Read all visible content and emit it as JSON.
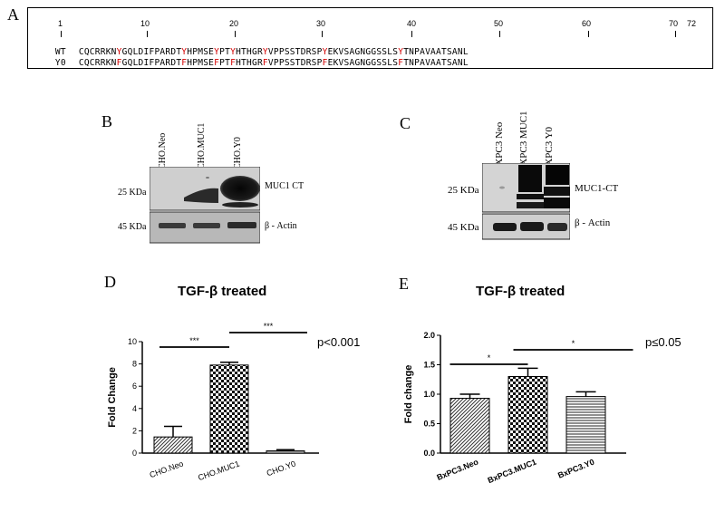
{
  "panels": {
    "A": "A",
    "B": "B",
    "C": "C",
    "D": "D",
    "E": "E"
  },
  "sequence": {
    "positions": [
      "1",
      "10",
      "20",
      "30",
      "40",
      "50",
      "60",
      "70",
      "72"
    ],
    "rows": [
      {
        "label": "WT",
        "segments": [
          {
            "t": "CQCRRKN",
            "red": false
          },
          {
            "t": "Y",
            "red": true
          },
          {
            "t": "GQLDIFPARDT",
            "red": false
          },
          {
            "t": "Y",
            "red": true
          },
          {
            "t": "HPMSE",
            "red": false
          },
          {
            "t": "Y",
            "red": true
          },
          {
            "t": "PT",
            "red": false
          },
          {
            "t": "Y",
            "red": true
          },
          {
            "t": "HTHGR",
            "red": false
          },
          {
            "t": "Y",
            "red": true
          },
          {
            "t": "VPPSSTDRSP",
            "red": false
          },
          {
            "t": "Y",
            "red": true
          },
          {
            "t": "EKVSAGNGGSSLS",
            "red": false
          },
          {
            "t": "Y",
            "red": true
          },
          {
            "t": "TNPAVAATSANL",
            "red": false
          }
        ]
      },
      {
        "label": "Y0",
        "segments": [
          {
            "t": "CQCRRKN",
            "red": false
          },
          {
            "t": "F",
            "red": true
          },
          {
            "t": "GQLDIFPARDT",
            "red": false
          },
          {
            "t": "F",
            "red": true
          },
          {
            "t": "HPMSE",
            "red": false
          },
          {
            "t": "F",
            "red": true
          },
          {
            "t": "PT",
            "red": false
          },
          {
            "t": "F",
            "red": true
          },
          {
            "t": "HTHGR",
            "red": false
          },
          {
            "t": "F",
            "red": true
          },
          {
            "t": "VPPSSTDRSP",
            "red": false
          },
          {
            "t": "F",
            "red": true
          },
          {
            "t": "EKVSAGNGGSSLS",
            "red": false
          },
          {
            "t": "F",
            "red": true
          },
          {
            "t": "TNPAVAATSANL",
            "red": false
          }
        ]
      }
    ]
  },
  "blotB": {
    "lanes": [
      "CHO.Neo",
      "CHO.MUC1",
      "CHO.Y0"
    ],
    "kda_top": "25 KDa",
    "kda_bottom": "45 KDa",
    "band_top": "MUC1 CT",
    "band_bottom": "β - Actin"
  },
  "blotC": {
    "lanes": [
      "BXPC3 Neo",
      "BXPC3 MUC1",
      "BXPC3 Y0"
    ],
    "kda_top": "25 KDa",
    "kda_bottom": "45 KDa",
    "band_top": "MUC1-CT",
    "band_bottom": "β - Actin"
  },
  "chartD": {
    "title": "TGF-β treated",
    "pvalue": "p<0.001"
  },
  "chartE": {
    "title": "TGF-β treated",
    "pvalue": "p≤0.05"
  },
  "chart_data": [
    {
      "type": "bar",
      "title": "TGF-β treated",
      "categories": [
        "CHO.Neo",
        "CHO.MUC1",
        "CHO.Y0"
      ],
      "values": [
        1.45,
        7.9,
        0.2
      ],
      "errors": [
        0.95,
        0.25,
        0.1
      ],
      "patterns": [
        "diag",
        "check",
        "hstripe"
      ],
      "ylabel": "Fold Change",
      "xlabel": "",
      "ylim": [
        0,
        10
      ],
      "yticks": [
        "0",
        "2",
        "4",
        "6",
        "8",
        "10"
      ],
      "significance": [
        {
          "from": 0,
          "to": 1,
          "label": "***"
        },
        {
          "from": 1,
          "to": 2,
          "label": "***"
        }
      ],
      "annotation": "p<0.001"
    },
    {
      "type": "bar",
      "title": "TGF-β treated",
      "categories": [
        "BxPC3.Neo",
        "BxPC3.MUC1",
        "BxPC3.Y0"
      ],
      "values": [
        0.93,
        1.3,
        0.96
      ],
      "errors": [
        0.07,
        0.14,
        0.08
      ],
      "patterns": [
        "diag",
        "check",
        "hstripe"
      ],
      "ylabel": "Fold change",
      "xlabel": "",
      "ylim": [
        0,
        2
      ],
      "yticks": [
        "0.0",
        "0.5",
        "1.0",
        "1.5",
        "2.0"
      ],
      "significance": [
        {
          "from": 0,
          "to": 1,
          "label": "*"
        },
        {
          "from": 1,
          "to": 2,
          "label": "*"
        }
      ],
      "annotation": "p≤0.05"
    }
  ]
}
